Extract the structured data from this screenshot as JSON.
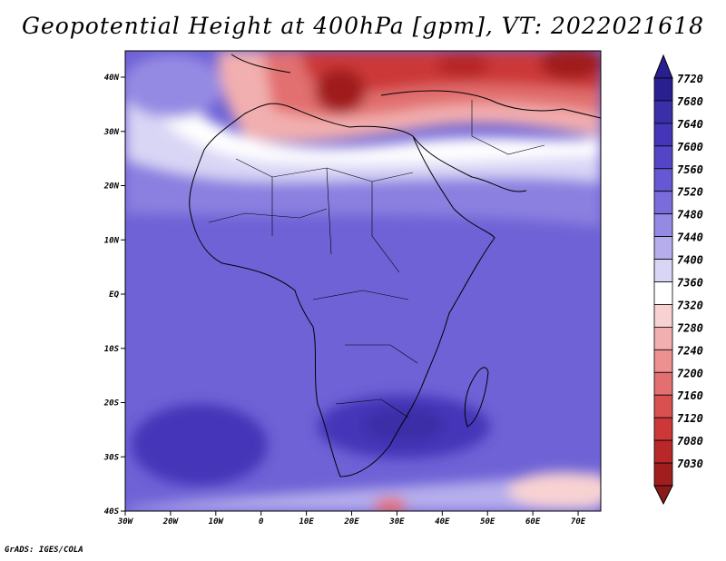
{
  "title": "Geopotential Height at 400hPa [gpm], VT: 2022021618",
  "credit": "GrADS: IGES/COLA",
  "map": {
    "lon_ticks": [
      "30W",
      "20W",
      "10W",
      "0",
      "10E",
      "20E",
      "30E",
      "40E",
      "50E",
      "60E",
      "70E"
    ],
    "lat_ticks": [
      "40S",
      "30S",
      "20S",
      "10S",
      "EQ",
      "10N",
      "20N",
      "30N",
      "40N"
    ]
  },
  "colorbar": {
    "labels": [
      "7720",
      "7680",
      "7640",
      "7600",
      "7560",
      "7520",
      "7480",
      "7440",
      "7400",
      "7360",
      "7320",
      "7280",
      "7240",
      "7200",
      "7160",
      "7120",
      "7080",
      "7030"
    ],
    "colors": [
      "#2a1f8f",
      "#3a2fa6",
      "#4535b8",
      "#5445c6",
      "#6657d2",
      "#7a6ddb",
      "#958ae3",
      "#b6aeec",
      "#d9d5f5",
      "#ffffff",
      "#f8d2d2",
      "#f2afaf",
      "#ec9090",
      "#e27070",
      "#d85050",
      "#cc3838",
      "#b82828",
      "#a01e1e"
    ],
    "top_arrow_color": "#2a1f8f",
    "bottom_arrow_color": "#8b1a1a"
  }
}
